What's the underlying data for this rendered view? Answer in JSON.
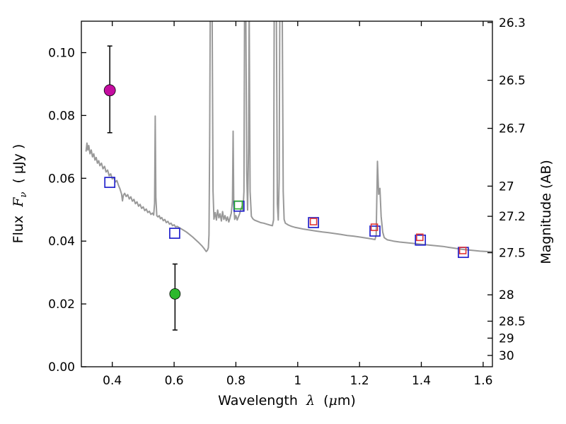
{
  "chart_data": {
    "type": "line",
    "title": "",
    "xlabel": "Wavelength λ (μm)",
    "xlabel_parts": {
      "word": "Wavelength",
      "lambda": "λ",
      "unit_open": "(",
      "mu": "μ",
      "unit_close": "m)"
    },
    "ylabel_left": "Flux Fν ( μJy )",
    "ylabel_left_parts": {
      "word": "Flux",
      "symbol": "F",
      "sub": "ν",
      "unit": "( μJy )"
    },
    "ylabel_right": "Magnitude (AB)",
    "xlim": [
      0.3,
      1.63
    ],
    "ylim": [
      0.0,
      0.11
    ],
    "legend": "none",
    "grid": false,
    "axes": {
      "background": "#ffffff",
      "border_color": "#000000",
      "tick_color": "#000000",
      "tick_length": 7,
      "x_ticks": [
        {
          "value": 0.4,
          "label": "0.4"
        },
        {
          "value": 0.6,
          "label": "0.6"
        },
        {
          "value": 0.8,
          "label": "0.8"
        },
        {
          "value": 1.0,
          "label": "1"
        },
        {
          "value": 1.2,
          "label": "1.2"
        },
        {
          "value": 1.4,
          "label": "1.4"
        },
        {
          "value": 1.6,
          "label": "1.6"
        }
      ],
      "y_ticks_left": [
        {
          "value": 0.0,
          "label": "0.00"
        },
        {
          "value": 0.02,
          "label": "0.02"
        },
        {
          "value": 0.04,
          "label": "0.04"
        },
        {
          "value": 0.06,
          "label": "0.06"
        },
        {
          "value": 0.08,
          "label": "0.08"
        },
        {
          "value": 0.1,
          "label": "0.10"
        }
      ],
      "y_ticks_right": [
        {
          "label": "26.3",
          "flux": 0.1096
        },
        {
          "label": "26.5",
          "flux": 0.0912
        },
        {
          "label": "26.7",
          "flux": 0.0759
        },
        {
          "label": "27",
          "flux": 0.0575
        },
        {
          "label": "27.2",
          "flux": 0.0479
        },
        {
          "label": "27.5",
          "flux": 0.0363
        },
        {
          "label": "28",
          "flux": 0.0229
        },
        {
          "label": "28.5",
          "flux": 0.0145
        },
        {
          "label": "29",
          "flux": 0.0091
        },
        {
          "label": "30",
          "flux": 0.0036
        }
      ]
    },
    "series": {
      "spectrum": {
        "name": "model spectrum",
        "color": "#999999",
        "stroke_width": 2,
        "points": [
          [
            0.315,
            0.0685
          ],
          [
            0.318,
            0.0712
          ],
          [
            0.321,
            0.069
          ],
          [
            0.324,
            0.0704
          ],
          [
            0.328,
            0.0678
          ],
          [
            0.332,
            0.069
          ],
          [
            0.336,
            0.0668
          ],
          [
            0.34,
            0.0678
          ],
          [
            0.344,
            0.0658
          ],
          [
            0.348,
            0.0666
          ],
          [
            0.352,
            0.0648
          ],
          [
            0.356,
            0.0656
          ],
          [
            0.36,
            0.064
          ],
          [
            0.365,
            0.0648
          ],
          [
            0.37,
            0.063
          ],
          [
            0.375,
            0.0638
          ],
          [
            0.38,
            0.062
          ],
          [
            0.385,
            0.0626
          ],
          [
            0.39,
            0.0608
          ],
          [
            0.395,
            0.0614
          ],
          [
            0.4,
            0.0598
          ],
          [
            0.405,
            0.0603
          ],
          [
            0.41,
            0.0588
          ],
          [
            0.415,
            0.0593
          ],
          [
            0.42,
            0.0578
          ],
          [
            0.425,
            0.0566
          ],
          [
            0.43,
            0.055
          ],
          [
            0.433,
            0.0528
          ],
          [
            0.436,
            0.0546
          ],
          [
            0.44,
            0.0552
          ],
          [
            0.445,
            0.0542
          ],
          [
            0.45,
            0.0548
          ],
          [
            0.455,
            0.0534
          ],
          [
            0.46,
            0.0541
          ],
          [
            0.465,
            0.0527
          ],
          [
            0.47,
            0.0533
          ],
          [
            0.475,
            0.0519
          ],
          [
            0.48,
            0.0525
          ],
          [
            0.485,
            0.0511
          ],
          [
            0.49,
            0.0517
          ],
          [
            0.495,
            0.0504
          ],
          [
            0.5,
            0.0509
          ],
          [
            0.505,
            0.0497
          ],
          [
            0.51,
            0.0502
          ],
          [
            0.515,
            0.0491
          ],
          [
            0.52,
            0.0495
          ],
          [
            0.525,
            0.0485
          ],
          [
            0.53,
            0.0489
          ],
          [
            0.534,
            0.0483
          ],
          [
            0.537,
            0.052
          ],
          [
            0.539,
            0.0798
          ],
          [
            0.541,
            0.054
          ],
          [
            0.544,
            0.0481
          ],
          [
            0.548,
            0.0477
          ],
          [
            0.552,
            0.0481
          ],
          [
            0.556,
            0.0471
          ],
          [
            0.56,
            0.0475
          ],
          [
            0.565,
            0.0465
          ],
          [
            0.57,
            0.0469
          ],
          [
            0.575,
            0.0459
          ],
          [
            0.58,
            0.0463
          ],
          [
            0.585,
            0.0454
          ],
          [
            0.59,
            0.0457
          ],
          [
            0.595,
            0.0449
          ],
          [
            0.6,
            0.0452
          ],
          [
            0.605,
            0.0445
          ],
          [
            0.61,
            0.0447
          ],
          [
            0.62,
            0.0441
          ],
          [
            0.63,
            0.0435
          ],
          [
            0.64,
            0.0429
          ],
          [
            0.65,
            0.0421
          ],
          [
            0.66,
            0.0413
          ],
          [
            0.67,
            0.0404
          ],
          [
            0.68,
            0.0395
          ],
          [
            0.69,
            0.0385
          ],
          [
            0.698,
            0.0375
          ],
          [
            0.704,
            0.0367
          ],
          [
            0.708,
            0.0371
          ],
          [
            0.711,
            0.0379
          ],
          [
            0.713,
            0.042
          ],
          [
            0.715,
            0.07
          ],
          [
            0.717,
            0.115
          ],
          [
            0.723,
            0.115
          ],
          [
            0.726,
            0.056
          ],
          [
            0.729,
            0.047
          ],
          [
            0.733,
            0.0491
          ],
          [
            0.737,
            0.0467
          ],
          [
            0.741,
            0.0499
          ],
          [
            0.745,
            0.0474
          ],
          [
            0.749,
            0.0487
          ],
          [
            0.753,
            0.0464
          ],
          [
            0.757,
            0.0494
          ],
          [
            0.761,
            0.0469
          ],
          [
            0.765,
            0.0481
          ],
          [
            0.769,
            0.0465
          ],
          [
            0.773,
            0.0477
          ],
          [
            0.777,
            0.0461
          ],
          [
            0.781,
            0.0474
          ],
          [
            0.785,
            0.0489
          ],
          [
            0.789,
            0.0528
          ],
          [
            0.791,
            0.075
          ],
          [
            0.793,
            0.0519
          ],
          [
            0.796,
            0.0469
          ],
          [
            0.8,
            0.0481
          ],
          [
            0.804,
            0.0467
          ],
          [
            0.808,
            0.0477
          ],
          [
            0.812,
            0.0487
          ],
          [
            0.816,
            0.0501
          ],
          [
            0.82,
            0.0511
          ],
          [
            0.823,
            0.0497
          ],
          [
            0.826,
            0.0558
          ],
          [
            0.828,
            0.115
          ],
          [
            0.832,
            0.115
          ],
          [
            0.835,
            0.0618
          ],
          [
            0.838,
            0.0499
          ],
          [
            0.841,
            0.0698
          ],
          [
            0.843,
            0.115
          ],
          [
            0.846,
            0.0558
          ],
          [
            0.85,
            0.0479
          ],
          [
            0.855,
            0.0471
          ],
          [
            0.86,
            0.0467
          ],
          [
            0.87,
            0.0463
          ],
          [
            0.88,
            0.0459
          ],
          [
            0.89,
            0.0457
          ],
          [
            0.9,
            0.0454
          ],
          [
            0.91,
            0.0451
          ],
          [
            0.918,
            0.0449
          ],
          [
            0.922,
            0.0468
          ],
          [
            0.924,
            0.115
          ],
          [
            0.931,
            0.115
          ],
          [
            0.934,
            0.0519
          ],
          [
            0.937,
            0.0467
          ],
          [
            0.94,
            0.0598
          ],
          [
            0.942,
            0.115
          ],
          [
            0.95,
            0.115
          ],
          [
            0.953,
            0.0558
          ],
          [
            0.956,
            0.0469
          ],
          [
            0.96,
            0.0457
          ],
          [
            0.97,
            0.0451
          ],
          [
            0.98,
            0.0447
          ],
          [
            0.99,
            0.0444
          ],
          [
            1.0,
            0.0442
          ],
          [
            1.02,
            0.0438
          ],
          [
            1.04,
            0.0435
          ],
          [
            1.06,
            0.0432
          ],
          [
            1.08,
            0.0429
          ],
          [
            1.1,
            0.0427
          ],
          [
            1.12,
            0.0424
          ],
          [
            1.14,
            0.0421
          ],
          [
            1.16,
            0.0418
          ],
          [
            1.18,
            0.0416
          ],
          [
            1.2,
            0.0413
          ],
          [
            1.22,
            0.041
          ],
          [
            1.24,
            0.0407
          ],
          [
            1.25,
            0.0405
          ],
          [
            1.254,
            0.0419
          ],
          [
            1.258,
            0.0654
          ],
          [
            1.262,
            0.0549
          ],
          [
            1.266,
            0.0568
          ],
          [
            1.27,
            0.0479
          ],
          [
            1.275,
            0.0429
          ],
          [
            1.28,
            0.0411
          ],
          [
            1.29,
            0.0404
          ],
          [
            1.31,
            0.04
          ],
          [
            1.33,
            0.0397
          ],
          [
            1.35,
            0.0395
          ],
          [
            1.37,
            0.0393
          ],
          [
            1.39,
            0.0391
          ],
          [
            1.41,
            0.0389
          ],
          [
            1.43,
            0.0387
          ],
          [
            1.45,
            0.0385
          ],
          [
            1.47,
            0.0383
          ],
          [
            1.49,
            0.038
          ],
          [
            1.51,
            0.0377
          ],
          [
            1.53,
            0.0374
          ],
          [
            1.55,
            0.0372
          ],
          [
            1.57,
            0.037
          ],
          [
            1.59,
            0.0368
          ],
          [
            1.61,
            0.0367
          ],
          [
            1.63,
            0.0366
          ]
        ]
      },
      "observed_squares": {
        "name": "observed photometry",
        "marker": "open-square",
        "color": "#2222cc",
        "size": 14,
        "stroke_width": 1.7,
        "points": [
          [
            0.392,
            0.0587
          ],
          [
            0.602,
            0.0425
          ],
          [
            0.81,
            0.0511
          ],
          [
            1.051,
            0.0459
          ],
          [
            1.25,
            0.0432
          ],
          [
            1.397,
            0.0403
          ],
          [
            1.536,
            0.0364
          ]
        ]
      },
      "model_squares": {
        "name": "model photometry",
        "marker": "open-square",
        "color": "#e03535",
        "size": 9,
        "stroke_width": 1.6,
        "points": [
          [
            1.051,
            0.0462
          ],
          [
            1.248,
            0.0444
          ],
          [
            1.395,
            0.0412
          ],
          [
            1.534,
            0.037
          ]
        ]
      },
      "model_square_green": {
        "name": "model photometry (green)",
        "marker": "open-square",
        "color": "#2db02d",
        "size": 11,
        "stroke_width": 1.7,
        "points": [
          [
            0.808,
            0.0515
          ]
        ]
      },
      "errorbar_style": {
        "color": "#000000",
        "stroke_width": 1.5,
        "cap_half_width": 3.5
      },
      "detections": [
        {
          "name": "magenta detection",
          "marker": "filled-circle",
          "color": "#c40da0",
          "edge_color": "#000000",
          "radius": 8,
          "x": 0.392,
          "y": 0.088,
          "yerr_plus": 0.0141,
          "yerr_minus": 0.0135
        },
        {
          "name": "green detection",
          "marker": "filled-circle",
          "color": "#2db82d",
          "edge_color": "#000000",
          "radius": 7.5,
          "x": 0.603,
          "y": 0.0232,
          "yerr_plus": 0.0095,
          "yerr_minus": 0.0115
        }
      ]
    }
  }
}
